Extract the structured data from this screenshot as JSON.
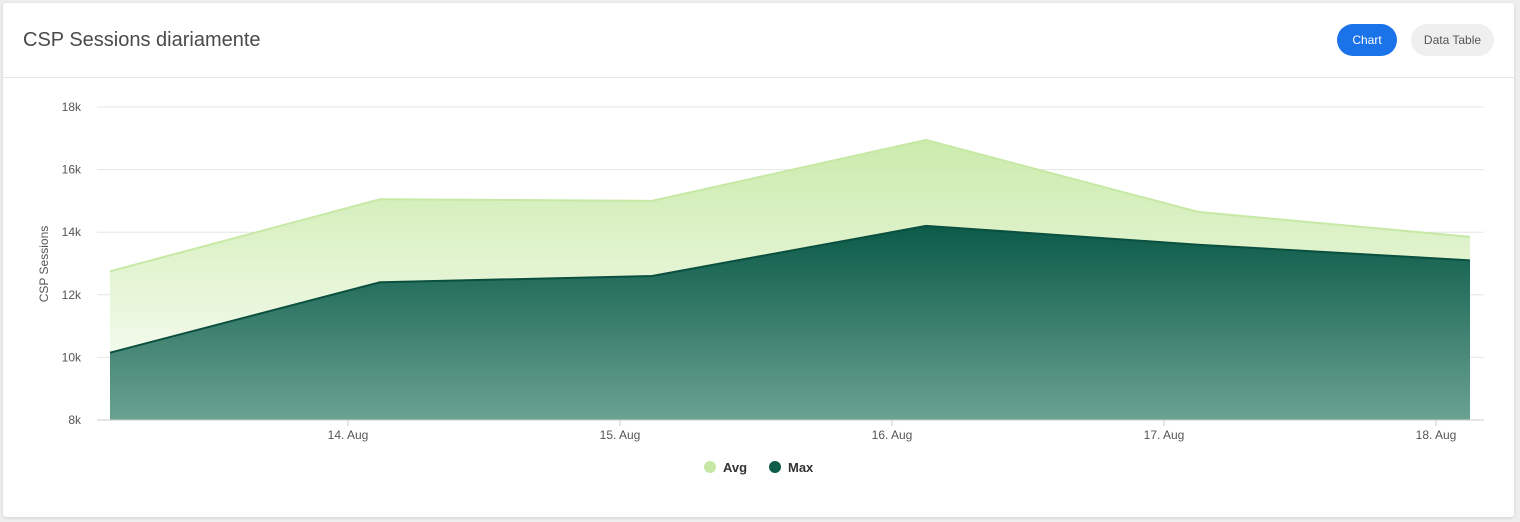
{
  "header": {
    "title": "CSP Sessions diariamente",
    "chart_button": "Chart",
    "data_table_button": "Data Table"
  },
  "chart_data": {
    "type": "area",
    "title": "CSP Sessions diariamente",
    "xlabel": "",
    "ylabel": "CSP Sessions",
    "ylim": [
      8000,
      18000
    ],
    "yticks": [
      8000,
      10000,
      12000,
      14000,
      16000,
      18000
    ],
    "ytick_labels": [
      "8k",
      "10k",
      "12k",
      "14k",
      "16k",
      "18k"
    ],
    "x_ticks": [
      "14. Aug",
      "15. Aug",
      "16. Aug",
      "17. Aug",
      "18. Aug"
    ],
    "x": [
      "13. Aug",
      "14. Aug",
      "15. Aug",
      "16. Aug",
      "17. Aug",
      "18. Aug"
    ],
    "series": [
      {
        "name": "Avg",
        "color": "#c5e8a5",
        "values": [
          12750,
          15050,
          15000,
          16950,
          14650,
          13850
        ]
      },
      {
        "name": "Max",
        "color": "#0e5c4a",
        "values": [
          10150,
          12400,
          12600,
          14200,
          13600,
          13100
        ]
      }
    ],
    "grid": true,
    "legend": "bottom-center"
  }
}
